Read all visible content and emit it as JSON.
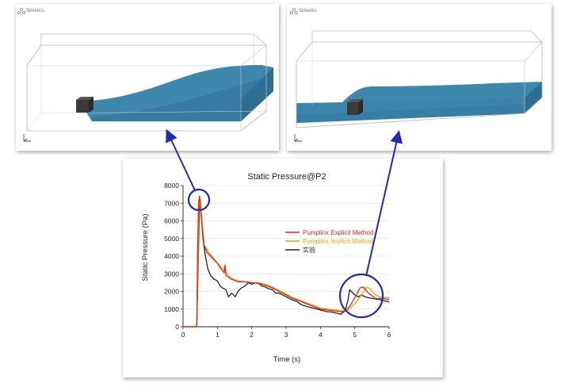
{
  "left_panel": {
    "logo_text": "Simerics"
  },
  "right_panel": {
    "logo_text": "Simerics"
  },
  "chart_data": {
    "type": "line",
    "title": "Static Pressure@P2",
    "xlabel": "Time (s)",
    "ylabel": "Static Pressure (Pa)",
    "xlim": [
      0,
      6
    ],
    "ylim": [
      0,
      8000
    ],
    "x_ticks": [
      0,
      1,
      2,
      3,
      4,
      5,
      6
    ],
    "y_ticks": [
      0,
      1000,
      2000,
      3000,
      4000,
      5000,
      6000,
      7000,
      8000
    ],
    "grid": "horizontal",
    "legend_position": "right",
    "series": [
      {
        "name": "Pumplinx Explicit Method",
        "color": "#e8231b",
        "points": [
          [
            0,
            0
          ],
          [
            0.35,
            0
          ],
          [
            0.4,
            0
          ],
          [
            0.42,
            3800
          ],
          [
            0.45,
            7000
          ],
          [
            0.48,
            7400
          ],
          [
            0.52,
            6400
          ],
          [
            0.6,
            4700
          ],
          [
            0.7,
            4200
          ],
          [
            0.8,
            4000
          ],
          [
            0.9,
            3800
          ],
          [
            1.0,
            3600
          ],
          [
            1.1,
            3300
          ],
          [
            1.2,
            3050
          ],
          [
            1.22,
            3500
          ],
          [
            1.25,
            2900
          ],
          [
            1.4,
            2700
          ],
          [
            1.6,
            2550
          ],
          [
            1.8,
            2550
          ],
          [
            2.0,
            2500
          ],
          [
            2.2,
            2450
          ],
          [
            2.4,
            2350
          ],
          [
            2.6,
            2200
          ],
          [
            2.8,
            2000
          ],
          [
            3.0,
            1800
          ],
          [
            3.2,
            1600
          ],
          [
            3.4,
            1450
          ],
          [
            3.6,
            1300
          ],
          [
            3.8,
            1150
          ],
          [
            4.0,
            1000
          ],
          [
            4.2,
            950
          ],
          [
            4.4,
            900
          ],
          [
            4.6,
            850
          ],
          [
            4.75,
            900
          ],
          [
            4.9,
            1300
          ],
          [
            5.05,
            1800
          ],
          [
            5.15,
            2200
          ],
          [
            5.25,
            2250
          ],
          [
            5.4,
            1900
          ],
          [
            5.6,
            1600
          ],
          [
            5.8,
            1600
          ],
          [
            6.0,
            1550
          ]
        ]
      },
      {
        "name": "Pumplinx Implicit Method",
        "color": "#f0a000",
        "points": [
          [
            0,
            0
          ],
          [
            0.35,
            0
          ],
          [
            0.4,
            0
          ],
          [
            0.43,
            3000
          ],
          [
            0.46,
            6800
          ],
          [
            0.5,
            7300
          ],
          [
            0.54,
            6300
          ],
          [
            0.62,
            4600
          ],
          [
            0.75,
            4200
          ],
          [
            0.9,
            3850
          ],
          [
            1.0,
            3600
          ],
          [
            1.2,
            3200
          ],
          [
            1.4,
            2750
          ],
          [
            1.6,
            2600
          ],
          [
            1.8,
            2550
          ],
          [
            2.0,
            2500
          ],
          [
            2.2,
            2500
          ],
          [
            2.4,
            2400
          ],
          [
            2.6,
            2250
          ],
          [
            2.8,
            2050
          ],
          [
            3.0,
            1850
          ],
          [
            3.2,
            1650
          ],
          [
            3.4,
            1500
          ],
          [
            3.6,
            1350
          ],
          [
            3.8,
            1200
          ],
          [
            4.0,
            1050
          ],
          [
            4.2,
            1000
          ],
          [
            4.4,
            950
          ],
          [
            4.6,
            900
          ],
          [
            4.8,
            950
          ],
          [
            5.0,
            1300
          ],
          [
            5.2,
            1800
          ],
          [
            5.35,
            2250
          ],
          [
            5.45,
            2150
          ],
          [
            5.6,
            1800
          ],
          [
            5.8,
            1650
          ],
          [
            6.0,
            1650
          ]
        ]
      },
      {
        "name": "实验",
        "color": "#202020",
        "points": [
          [
            0,
            0
          ],
          [
            0.35,
            0
          ],
          [
            0.4,
            0
          ],
          [
            0.44,
            3500
          ],
          [
            0.48,
            7300
          ],
          [
            0.52,
            6800
          ],
          [
            0.58,
            5000
          ],
          [
            0.65,
            4000
          ],
          [
            0.72,
            3300
          ],
          [
            0.8,
            2900
          ],
          [
            0.9,
            2700
          ],
          [
            1.0,
            2600
          ],
          [
            1.08,
            2300
          ],
          [
            1.15,
            2200
          ],
          [
            1.25,
            2100
          ],
          [
            1.32,
            1700
          ],
          [
            1.42,
            1900
          ],
          [
            1.52,
            1700
          ],
          [
            1.6,
            2000
          ],
          [
            1.7,
            2200
          ],
          [
            1.8,
            2300
          ],
          [
            1.9,
            2500
          ],
          [
            2.0,
            2400
          ],
          [
            2.1,
            2500
          ],
          [
            2.2,
            2450
          ],
          [
            2.3,
            2300
          ],
          [
            2.4,
            2250
          ],
          [
            2.5,
            2150
          ],
          [
            2.6,
            2100
          ],
          [
            2.7,
            1900
          ],
          [
            2.8,
            1900
          ],
          [
            2.9,
            1800
          ],
          [
            3.0,
            1700
          ],
          [
            3.1,
            1600
          ],
          [
            3.2,
            1500
          ],
          [
            3.3,
            1450
          ],
          [
            3.4,
            1300
          ],
          [
            3.5,
            1200
          ],
          [
            3.6,
            1150
          ],
          [
            3.7,
            1100
          ],
          [
            3.8,
            1050
          ],
          [
            3.9,
            1000
          ],
          [
            4.0,
            950
          ],
          [
            4.1,
            900
          ],
          [
            4.2,
            850
          ],
          [
            4.3,
            850
          ],
          [
            4.4,
            800
          ],
          [
            4.5,
            750
          ],
          [
            4.6,
            700
          ],
          [
            4.65,
            800
          ],
          [
            4.72,
            900
          ],
          [
            4.8,
            1500
          ],
          [
            4.85,
            2100
          ],
          [
            4.9,
            2000
          ],
          [
            5.0,
            1800
          ],
          [
            5.1,
            1700
          ],
          [
            5.2,
            1800
          ],
          [
            5.3,
            1700
          ],
          [
            5.5,
            1600
          ],
          [
            5.7,
            1550
          ],
          [
            6.0,
            1400
          ]
        ]
      }
    ]
  }
}
